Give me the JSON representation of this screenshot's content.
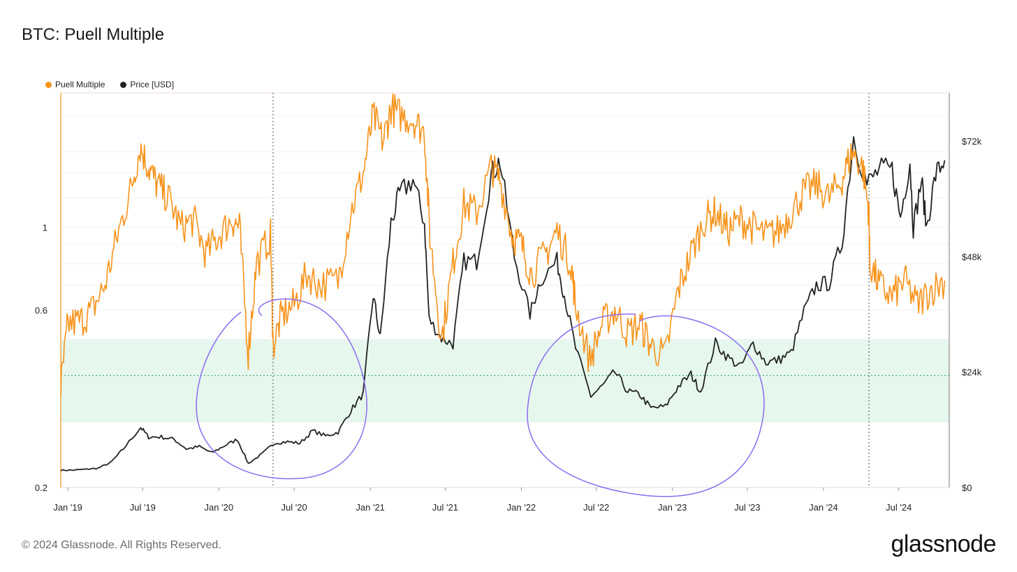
{
  "header": {
    "title": "BTC: Puell Multiple"
  },
  "footer": {
    "copyright": "© 2024 Glassnode. All Rights Reserved.",
    "brand": "glassnode"
  },
  "colors": {
    "puell": "#f7931a",
    "price": "#222222",
    "band": "#e6f7ee",
    "annotation": "#8b6cf0"
  },
  "chart_data": {
    "type": "line",
    "title": "BTC: Puell Multiple",
    "legend": {
      "placement": "top-left"
    },
    "series": [
      {
        "name": "Puell Multiple",
        "axis": "left",
        "color": "#f7931a",
        "points": [
          [
            "2018-12-15",
            0.37
          ],
          [
            "2019-01-01",
            0.55
          ],
          [
            "2019-02-01",
            0.56
          ],
          [
            "2019-03-01",
            0.6
          ],
          [
            "2019-04-01",
            0.7
          ],
          [
            "2019-05-01",
            0.95
          ],
          [
            "2019-06-01",
            1.25
          ],
          [
            "2019-06-25",
            1.65
          ],
          [
            "2019-07-15",
            1.45
          ],
          [
            "2019-08-05",
            1.3
          ],
          [
            "2019-09-01",
            1.2
          ],
          [
            "2019-10-01",
            1.0
          ],
          [
            "2019-11-01",
            1.05
          ],
          [
            "2019-12-01",
            0.85
          ],
          [
            "2020-01-01",
            0.95
          ],
          [
            "2020-02-01",
            1.05
          ],
          [
            "2020-02-20",
            1.0
          ],
          [
            "2020-03-12",
            0.46
          ],
          [
            "2020-04-01",
            0.8
          ],
          [
            "2020-05-05",
            0.95
          ],
          [
            "2020-05-11",
            0.48
          ],
          [
            "2020-06-01",
            0.58
          ],
          [
            "2020-07-01",
            0.62
          ],
          [
            "2020-08-01",
            0.75
          ],
          [
            "2020-09-01",
            0.7
          ],
          [
            "2020-10-15",
            0.72
          ],
          [
            "2020-11-15",
            1.1
          ],
          [
            "2020-12-15",
            1.4
          ],
          [
            "2021-01-08",
            2.0
          ],
          [
            "2021-02-01",
            1.7
          ],
          [
            "2021-02-20",
            2.1
          ],
          [
            "2021-03-15",
            2.0
          ],
          [
            "2021-04-15",
            1.95
          ],
          [
            "2021-05-12",
            1.8
          ],
          [
            "2021-05-25",
            0.95
          ],
          [
            "2021-06-22",
            0.5
          ],
          [
            "2021-07-20",
            0.8
          ],
          [
            "2021-08-15",
            1.15
          ],
          [
            "2021-09-15",
            1.1
          ],
          [
            "2021-10-20",
            1.45
          ],
          [
            "2021-11-10",
            1.35
          ],
          [
            "2021-12-10",
            0.95
          ],
          [
            "2022-01-01",
            0.9
          ],
          [
            "2022-01-25",
            0.75
          ],
          [
            "2022-03-01",
            0.85
          ],
          [
            "2022-03-28",
            0.98
          ],
          [
            "2022-05-01",
            0.8
          ],
          [
            "2022-05-12",
            0.62
          ],
          [
            "2022-06-15",
            0.44
          ],
          [
            "2022-07-15",
            0.55
          ],
          [
            "2022-08-15",
            0.6
          ],
          [
            "2022-09-15",
            0.52
          ],
          [
            "2022-10-15",
            0.55
          ],
          [
            "2022-11-10",
            0.48
          ],
          [
            "2022-12-15",
            0.45
          ],
          [
            "2023-01-15",
            0.68
          ],
          [
            "2023-02-15",
            0.85
          ],
          [
            "2023-03-20",
            1.05
          ],
          [
            "2023-04-15",
            1.1
          ],
          [
            "2023-05-15",
            0.98
          ],
          [
            "2023-06-15",
            1.05
          ],
          [
            "2023-07-15",
            1.0
          ],
          [
            "2023-08-15",
            0.95
          ],
          [
            "2023-09-15",
            0.98
          ],
          [
            "2023-10-15",
            1.1
          ],
          [
            "2023-11-15",
            1.25
          ],
          [
            "2023-12-15",
            1.3
          ],
          [
            "2024-01-15",
            1.2
          ],
          [
            "2024-02-15",
            1.35
          ],
          [
            "2024-03-10",
            1.6
          ],
          [
            "2024-04-05",
            1.45
          ],
          [
            "2024-04-20",
            1.1
          ],
          [
            "2024-04-22",
            0.8
          ],
          [
            "2024-05-15",
            0.7
          ],
          [
            "2024-06-15",
            0.65
          ],
          [
            "2024-07-15",
            0.72
          ],
          [
            "2024-08-15",
            0.62
          ],
          [
            "2024-09-15",
            0.68
          ],
          [
            "2024-10-20",
            0.72
          ]
        ]
      },
      {
        "name": "Price [USD]",
        "axis": "right",
        "color": "#222222",
        "points": [
          [
            "2018-12-15",
            3600
          ],
          [
            "2019-01-15",
            3600
          ],
          [
            "2019-02-15",
            3800
          ],
          [
            "2019-03-15",
            4000
          ],
          [
            "2019-04-15",
            5200
          ],
          [
            "2019-05-15",
            8000
          ],
          [
            "2019-06-26",
            12500
          ],
          [
            "2019-07-15",
            10500
          ],
          [
            "2019-08-15",
            10500
          ],
          [
            "2019-09-15",
            10000
          ],
          [
            "2019-10-15",
            8000
          ],
          [
            "2019-11-15",
            8500
          ],
          [
            "2019-12-15",
            7200
          ],
          [
            "2020-01-15",
            8700
          ],
          [
            "2020-02-15",
            10000
          ],
          [
            "2020-03-12",
            5000
          ],
          [
            "2020-04-15",
            7000
          ],
          [
            "2020-05-15",
            9300
          ],
          [
            "2020-06-15",
            9500
          ],
          [
            "2020-07-15",
            9200
          ],
          [
            "2020-08-15",
            11800
          ],
          [
            "2020-09-15",
            10700
          ],
          [
            "2020-10-15",
            11500
          ],
          [
            "2020-11-15",
            16000
          ],
          [
            "2020-12-15",
            19500
          ],
          [
            "2021-01-08",
            40000
          ],
          [
            "2021-01-25",
            31000
          ],
          [
            "2021-02-20",
            55000
          ],
          [
            "2021-03-13",
            61000
          ],
          [
            "2021-04-14",
            64000
          ],
          [
            "2021-05-12",
            55000
          ],
          [
            "2021-05-23",
            35000
          ],
          [
            "2021-06-22",
            31000
          ],
          [
            "2021-07-20",
            29800
          ],
          [
            "2021-08-15",
            47000
          ],
          [
            "2021-09-15",
            47000
          ],
          [
            "2021-10-20",
            65000
          ],
          [
            "2021-11-10",
            68000
          ],
          [
            "2021-12-15",
            48000
          ],
          [
            "2022-01-22",
            36000
          ],
          [
            "2022-02-15",
            43000
          ],
          [
            "2022-03-28",
            47000
          ],
          [
            "2022-04-15",
            40000
          ],
          [
            "2022-05-12",
            29000
          ],
          [
            "2022-06-18",
            19000
          ],
          [
            "2022-07-15",
            21000
          ],
          [
            "2022-08-15",
            24000
          ],
          [
            "2022-09-15",
            20000
          ],
          [
            "2022-10-15",
            19200
          ],
          [
            "2022-11-10",
            16500
          ],
          [
            "2022-12-15",
            16800
          ],
          [
            "2023-01-15",
            21000
          ],
          [
            "2023-02-15",
            23500
          ],
          [
            "2023-03-10",
            20000
          ],
          [
            "2023-04-15",
            30000
          ],
          [
            "2023-05-15",
            27000
          ],
          [
            "2023-06-15",
            25000
          ],
          [
            "2023-07-15",
            30000
          ],
          [
            "2023-08-15",
            26000
          ],
          [
            "2023-09-15",
            26500
          ],
          [
            "2023-10-15",
            28000
          ],
          [
            "2023-11-15",
            36500
          ],
          [
            "2023-12-15",
            42000
          ],
          [
            "2024-01-15",
            42500
          ],
          [
            "2024-02-15",
            51000
          ],
          [
            "2024-03-14",
            73000
          ],
          [
            "2024-04-15",
            63000
          ],
          [
            "2024-05-15",
            66000
          ],
          [
            "2024-06-15",
            66000
          ],
          [
            "2024-07-05",
            56000
          ],
          [
            "2024-07-28",
            68000
          ],
          [
            "2024-08-05",
            54000
          ],
          [
            "2024-08-25",
            64000
          ],
          [
            "2024-09-06",
            54000
          ],
          [
            "2024-09-28",
            65000
          ],
          [
            "2024-10-20",
            68000
          ]
        ]
      }
    ],
    "x_axis": {
      "ticks": [
        "Jan '19",
        "Jul '19",
        "Jan '20",
        "Jul '20",
        "Jan '21",
        "Jul '21",
        "Jan '22",
        "Jul '22",
        "Jan '23",
        "Jul '23",
        "Jan '24",
        "Jul '24"
      ],
      "tick_dates": [
        "2019-01-01",
        "2019-07-01",
        "2020-01-01",
        "2020-07-01",
        "2021-01-01",
        "2021-07-01",
        "2022-01-01",
        "2022-07-01",
        "2023-01-01",
        "2023-07-01",
        "2024-01-01",
        "2024-07-01"
      ],
      "range": [
        "2018-12-15",
        "2024-10-31"
      ]
    },
    "y_left": {
      "scale": "log",
      "ticks": [
        "0.2",
        "0.6",
        "1"
      ],
      "tick_values": [
        0.2,
        0.6,
        1
      ],
      "range": [
        0.2,
        2.3
      ]
    },
    "y_right": {
      "scale": "linear",
      "ticks": [
        "$0",
        "$24k",
        "$48k",
        "$72k"
      ],
      "tick_values": [
        0,
        24000,
        48000,
        72000
      ],
      "range": [
        0,
        82000
      ]
    },
    "band": {
      "from": 0.3,
      "to": 0.5,
      "midline": 0.4
    },
    "halving_dates": [
      "2020-05-11",
      "2024-04-20"
    ],
    "grid": true
  }
}
